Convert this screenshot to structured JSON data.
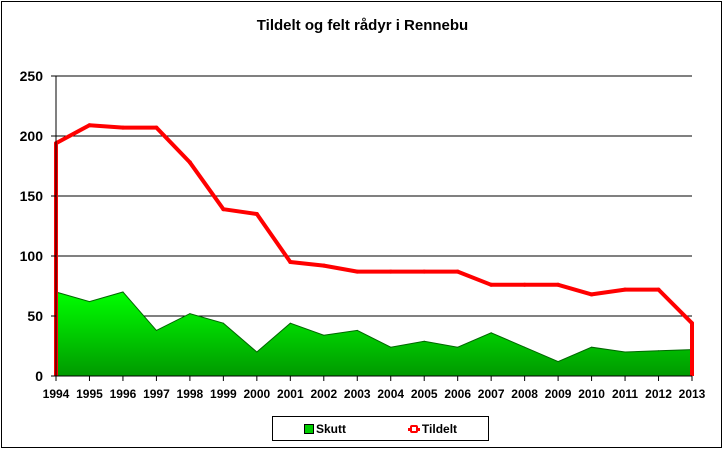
{
  "chart_data": {
    "type": "area",
    "title": "Tildelt og felt rådyr i Rennebu",
    "xlabel": "",
    "ylabel": "",
    "x": [
      "1994",
      "1995",
      "1996",
      "1997",
      "1998",
      "1999",
      "2000",
      "2001",
      "2002",
      "2003",
      "2004",
      "2005",
      "2006",
      "2007",
      "2008",
      "2009",
      "2010",
      "2011",
      "2012",
      "2013"
    ],
    "ylim": [
      0,
      250
    ],
    "yticks": [
      0,
      50,
      100,
      150,
      200,
      250
    ],
    "grid": true,
    "legend_position": "bottom",
    "series": [
      {
        "name": "Skutt",
        "kind": "area",
        "color": "#00cc00",
        "values": [
          70,
          62,
          70,
          38,
          52,
          44,
          20,
          44,
          34,
          38,
          24,
          29,
          24,
          36,
          24,
          12,
          24,
          20,
          21,
          22
        ]
      },
      {
        "name": "Tildelt",
        "kind": "line",
        "color": "#ff0000",
        "values": [
          194,
          209,
          207,
          207,
          178,
          139,
          135,
          95,
          92,
          87,
          87,
          87,
          87,
          76,
          76,
          76,
          68,
          72,
          72,
          44
        ]
      }
    ]
  }
}
